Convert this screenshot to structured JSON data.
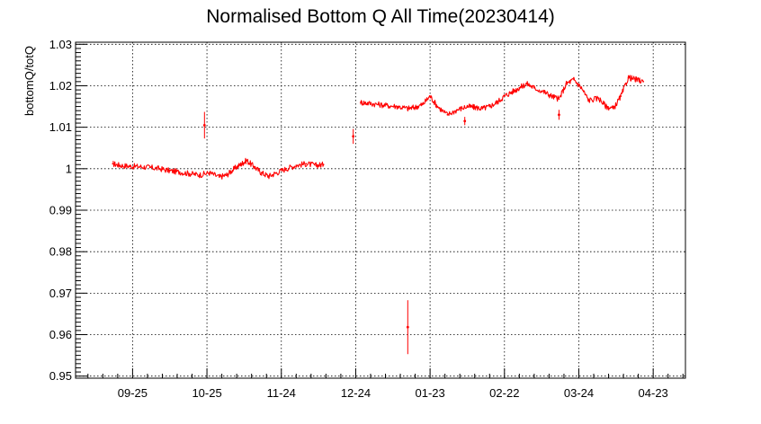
{
  "chart_data": {
    "type": "scatter",
    "title": "Normalised Bottom Q All Time(20230414)",
    "xlabel": "",
    "ylabel": "bottomQ/totQ",
    "ylim": [
      0.9495,
      1.0305
    ],
    "xlim": [
      "2022-09-02",
      "2023-05-06"
    ],
    "grid": true,
    "legend": "none",
    "series_color": "#ff0000",
    "x_ticks": [
      {
        "label": "09-25",
        "date": "2022-09-25"
      },
      {
        "label": "10-25",
        "date": "2022-10-25"
      },
      {
        "label": "11-24",
        "date": "2022-11-24"
      },
      {
        "label": "12-24",
        "date": "2022-12-24"
      },
      {
        "label": "01-23",
        "date": "2023-01-23"
      },
      {
        "label": "02-22",
        "date": "2023-02-22"
      },
      {
        "label": "03-24",
        "date": "2023-03-24"
      },
      {
        "label": "04-23",
        "date": "2023-04-23"
      }
    ],
    "y_ticks": [
      {
        "value": 0.95,
        "label": "0.95"
      },
      {
        "value": 0.96,
        "label": "0.96"
      },
      {
        "value": 0.97,
        "label": "0.97"
      },
      {
        "value": 0.98,
        "label": "0.98"
      },
      {
        "value": 0.99,
        "label": "0.99"
      },
      {
        "value": 1.0,
        "label": "1"
      },
      {
        "value": 1.01,
        "label": "1.01"
      },
      {
        "value": 1.02,
        "label": "1.02"
      },
      {
        "value": 1.03,
        "label": "1.03"
      }
    ],
    "series": [
      {
        "segment": "early",
        "x": [
          "2022-09-17",
          "2022-09-20",
          "2022-09-24",
          "2022-09-28",
          "2022-10-02",
          "2022-10-06",
          "2022-10-10",
          "2022-10-14",
          "2022-10-18",
          "2022-10-22",
          "2022-10-26",
          "2022-10-30",
          "2022-11-02",
          "2022-11-05",
          "2022-11-08",
          "2022-11-10",
          "2022-11-13",
          "2022-11-16",
          "2022-11-19",
          "2022-11-22",
          "2022-11-26",
          "2022-11-30",
          "2022-12-04",
          "2022-12-08",
          "2022-12-11"
        ],
        "y": [
          1.0012,
          1.0008,
          1.0006,
          1.0005,
          1.0003,
          1.0,
          0.9995,
          0.9992,
          0.9988,
          0.9985,
          0.999,
          0.998,
          0.9985,
          1.0,
          1.0012,
          1.002,
          1.0005,
          0.999,
          0.9982,
          0.999,
          1.0,
          1.0008,
          1.0012,
          1.0008,
          1.001
        ]
      },
      {
        "segment": "late",
        "x": [
          "2022-12-26",
          "2022-12-29",
          "2023-01-02",
          "2023-01-06",
          "2023-01-10",
          "2023-01-14",
          "2023-01-17",
          "2023-01-20",
          "2023-01-23",
          "2023-01-26",
          "2023-01-30",
          "2023-02-03",
          "2023-02-07",
          "2023-02-10",
          "2023-02-13",
          "2023-02-16",
          "2023-02-19",
          "2023-02-22",
          "2023-02-25",
          "2023-02-28",
          "2023-03-03",
          "2023-03-06",
          "2023-03-10",
          "2023-03-13",
          "2023-03-16",
          "2023-03-19",
          "2023-03-22",
          "2023-03-25",
          "2023-03-28",
          "2023-04-01",
          "2023-04-04",
          "2023-04-07",
          "2023-04-10",
          "2023-04-13",
          "2023-04-16",
          "2023-04-19"
        ],
        "y": [
          1.016,
          1.0158,
          1.0155,
          1.0152,
          1.015,
          1.0145,
          1.0148,
          1.0155,
          1.0175,
          1.015,
          1.013,
          1.0142,
          1.015,
          1.0148,
          1.0145,
          1.015,
          1.016,
          1.0175,
          1.0185,
          1.0195,
          1.0205,
          1.0195,
          1.0185,
          1.0175,
          1.0168,
          1.0205,
          1.0215,
          1.0195,
          1.0165,
          1.017,
          1.015,
          1.0145,
          1.0175,
          1.022,
          1.0215,
          1.021
        ]
      }
    ],
    "isolated_points": [
      {
        "x": "2022-10-24",
        "y": 1.0105,
        "err": 0.0032
      },
      {
        "x": "2022-12-23",
        "y": 1.0078,
        "err": 0.0018
      },
      {
        "x": "2023-01-14",
        "y": 0.9618,
        "err": 0.0065
      },
      {
        "x": "2023-02-06",
        "y": 1.0115,
        "err": 0.001
      },
      {
        "x": "2023-03-16",
        "y": 1.013,
        "err": 0.0012
      }
    ]
  }
}
